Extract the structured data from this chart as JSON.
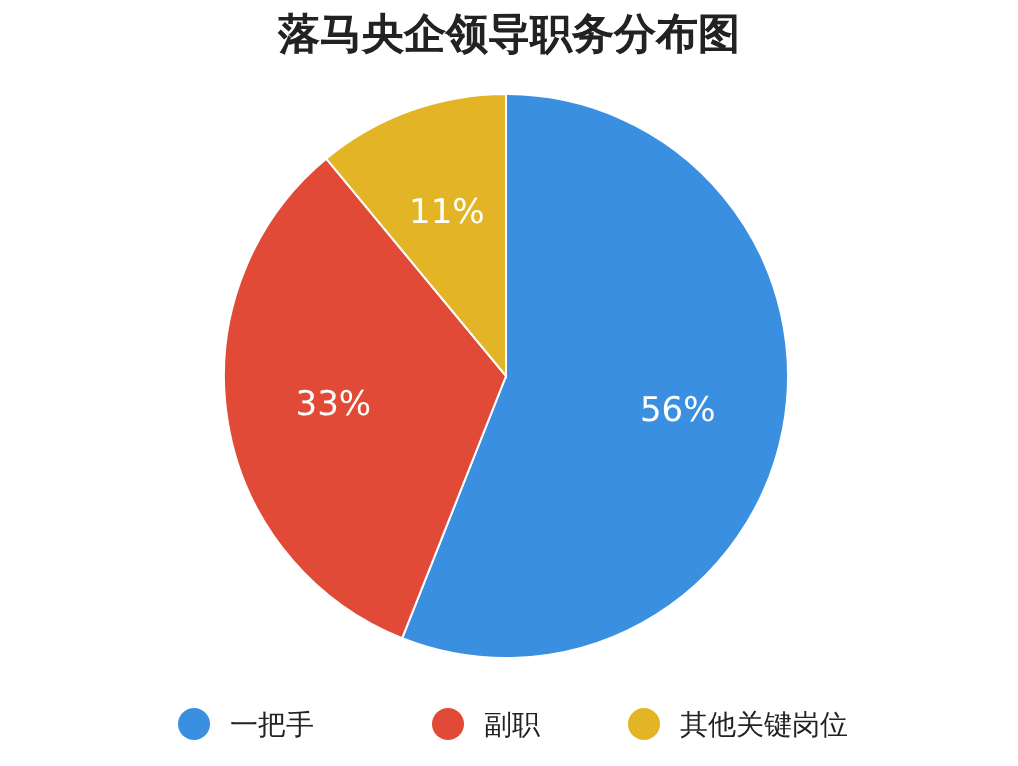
{
  "chart_data": {
    "type": "pie",
    "title": "落马央企领导职务分布图",
    "categories": [
      "一把手",
      "副职",
      "其他关键岗位"
    ],
    "values": [
      56,
      33,
      11
    ],
    "colors": [
      "#3b8fe0",
      "#e04a37",
      "#e3b526"
    ],
    "value_labels": [
      "56%",
      "33%",
      "11%"
    ],
    "legend": "bottom"
  }
}
